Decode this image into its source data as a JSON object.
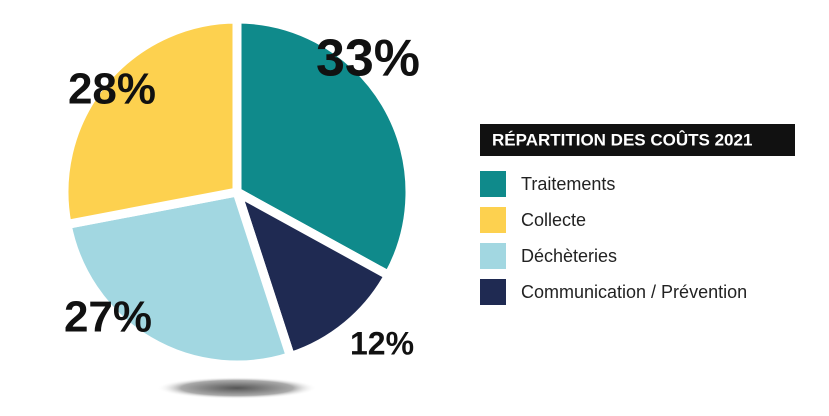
{
  "chart_data": {
    "type": "pie",
    "legend_title": "RÉPARTITION DES COÛTS 2021",
    "categories": [
      "Traitements",
      "Communication / Prévention",
      "Déchèteries",
      "Collecte"
    ],
    "values": [
      33,
      12,
      27,
      28
    ],
    "value_labels": [
      "33%",
      "12%",
      "27%",
      "28%"
    ],
    "colors": [
      "#0f8a8b",
      "#1f2a52",
      "#a2d7e1",
      "#fdd14f"
    ],
    "legend": "right"
  }
}
